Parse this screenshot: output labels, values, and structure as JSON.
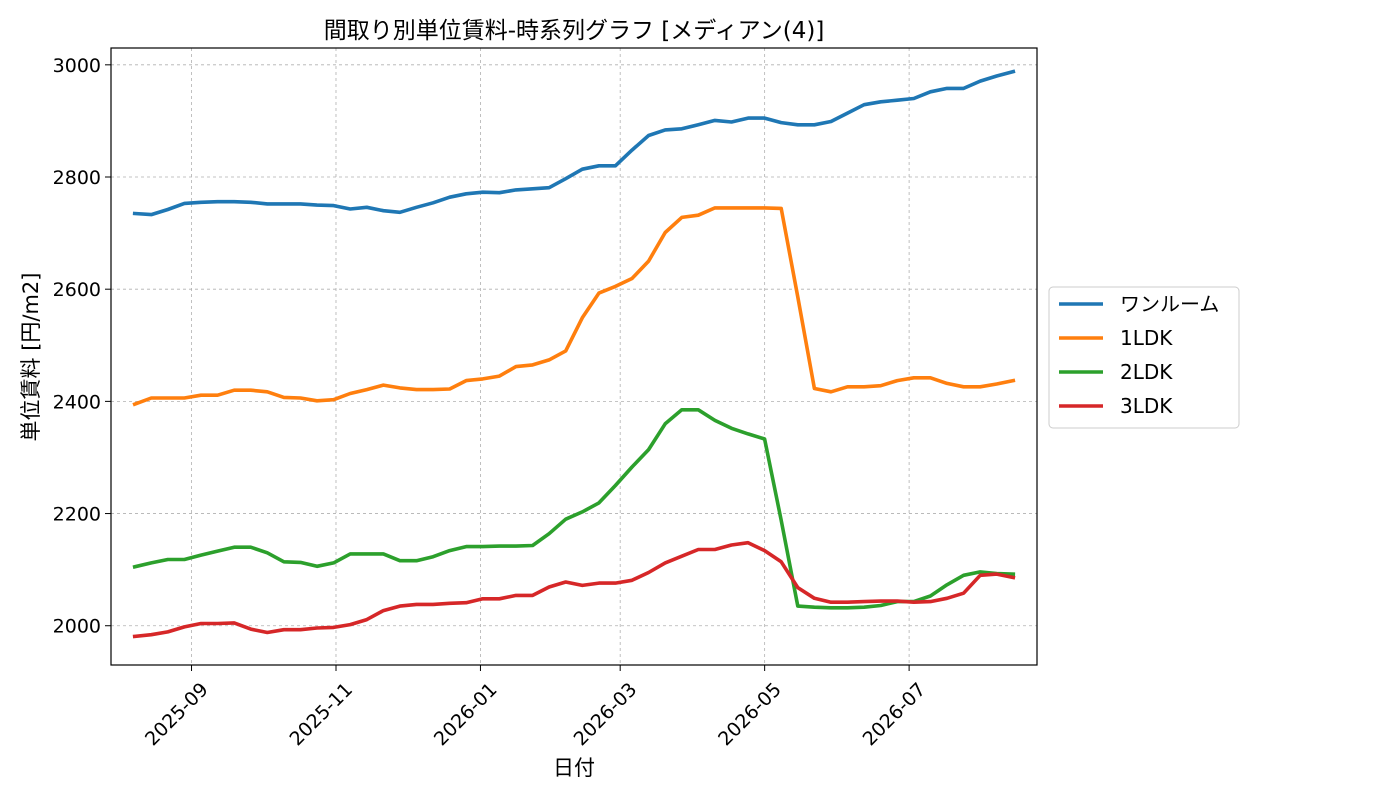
{
  "chart_data": {
    "type": "line",
    "title": "間取り別単位賃料-時系列グラフ [メディアン(4)]",
    "xlabel": "日付",
    "ylabel": "単位賃料 [円/m2]",
    "ylim": [
      1930,
      3030
    ],
    "yticks": [
      2000,
      2200,
      2400,
      2600,
      2800,
      3000
    ],
    "xlim": [
      "2025-07-29",
      "2026-08-24"
    ],
    "xticks": [
      "2025-09-01",
      "2025-11-01",
      "2026-01-01",
      "2026-03-01",
      "2026-05-01",
      "2026-07-01"
    ],
    "xtick_labels": [
      "2025-09",
      "2025-11",
      "2026-01",
      "2026-03",
      "2026-05",
      "2026-07"
    ],
    "grid": true,
    "legend_position": "right-outside",
    "dates": [
      "2025-08-08",
      "2025-08-15",
      "2025-08-22",
      "2025-08-29",
      "2025-09-05",
      "2025-09-12",
      "2025-09-19",
      "2025-09-26",
      "2025-10-03",
      "2025-10-10",
      "2025-10-17",
      "2025-10-24",
      "2025-10-31",
      "2025-11-07",
      "2025-11-14",
      "2025-11-21",
      "2025-11-28",
      "2025-12-05",
      "2025-12-12",
      "2025-12-19",
      "2025-12-26",
      "2026-01-02",
      "2026-01-09",
      "2026-01-16",
      "2026-01-23",
      "2026-01-30",
      "2026-02-06",
      "2026-02-13",
      "2026-02-20",
      "2026-02-27",
      "2026-03-06",
      "2026-03-13",
      "2026-03-20",
      "2026-03-27",
      "2026-04-03",
      "2026-04-10",
      "2026-04-17",
      "2026-04-24",
      "2026-05-01",
      "2026-05-08",
      "2026-05-15",
      "2026-05-22",
      "2026-05-29",
      "2026-06-05",
      "2026-06-12",
      "2026-06-19",
      "2026-06-26",
      "2026-07-03",
      "2026-07-10",
      "2026-07-17",
      "2026-07-24",
      "2026-07-31",
      "2026-08-07",
      "2026-08-14"
    ],
    "series": [
      {
        "name": "ワンルーム",
        "color": "#1f77b4",
        "values": [
          2735,
          2733,
          2742,
          2753,
          2755,
          2756,
          2756,
          2755,
          2752,
          2752,
          2752,
          2750,
          2749,
          2743,
          2746,
          2740,
          2737,
          2746,
          2754,
          2764,
          2770,
          2773,
          2772,
          2777,
          2779,
          2781,
          2797,
          2814,
          2820,
          2820,
          2848,
          2874,
          2884,
          2886,
          2893,
          2901,
          2898,
          2905,
          2905,
          2897,
          2893,
          2893,
          2899,
          2914,
          2929,
          2934,
          2937,
          2940,
          2952,
          2958,
          2958,
          2971,
          2980,
          2988
        ]
      },
      {
        "name": "1LDK",
        "color": "#ff7f0e",
        "values": [
          2395,
          2406,
          2406,
          2406,
          2411,
          2411,
          2420,
          2420,
          2417,
          2407,
          2406,
          2401,
          2403,
          2414,
          2421,
          2429,
          2424,
          2421,
          2421,
          2422,
          2437,
          2440,
          2445,
          2462,
          2465,
          2474,
          2490,
          2549,
          2593,
          2605,
          2619,
          2650,
          2701,
          2728,
          2732,
          2745,
          2745,
          2745,
          2745,
          2744,
          2586,
          2423,
          2417,
          2426,
          2426,
          2428,
          2437,
          2442,
          2442,
          2432,
          2426,
          2426,
          2431,
          2437
        ]
      },
      {
        "name": "2LDK",
        "color": "#2ca02c",
        "values": [
          2105,
          2112,
          2118,
          2118,
          2126,
          2133,
          2140,
          2140,
          2130,
          2114,
          2113,
          2106,
          2112,
          2128,
          2128,
          2128,
          2116,
          2116,
          2123,
          2134,
          2141,
          2141,
          2142,
          2142,
          2143,
          2164,
          2190,
          2203,
          2219,
          2250,
          2283,
          2314,
          2360,
          2385,
          2385,
          2366,
          2352,
          2342,
          2333,
          2188,
          2035,
          2033,
          2032,
          2032,
          2033,
          2036,
          2043,
          2043,
          2053,
          2073,
          2090,
          2096,
          2093,
          2092
        ]
      },
      {
        "name": "3LDK",
        "color": "#d62728",
        "values": [
          1981,
          1984,
          1989,
          1998,
          2004,
          2004,
          2005,
          1994,
          1988,
          1993,
          1993,
          1996,
          1997,
          2002,
          2011,
          2027,
          2035,
          2038,
          2038,
          2040,
          2041,
          2048,
          2048,
          2054,
          2054,
          2069,
          2078,
          2072,
          2076,
          2076,
          2081,
          2095,
          2112,
          2124,
          2136,
          2136,
          2144,
          2148,
          2134,
          2114,
          2068,
          2049,
          2042,
          2042,
          2043,
          2044,
          2044,
          2042,
          2043,
          2049,
          2058,
          2090,
          2092,
          2086
        ]
      }
    ]
  }
}
